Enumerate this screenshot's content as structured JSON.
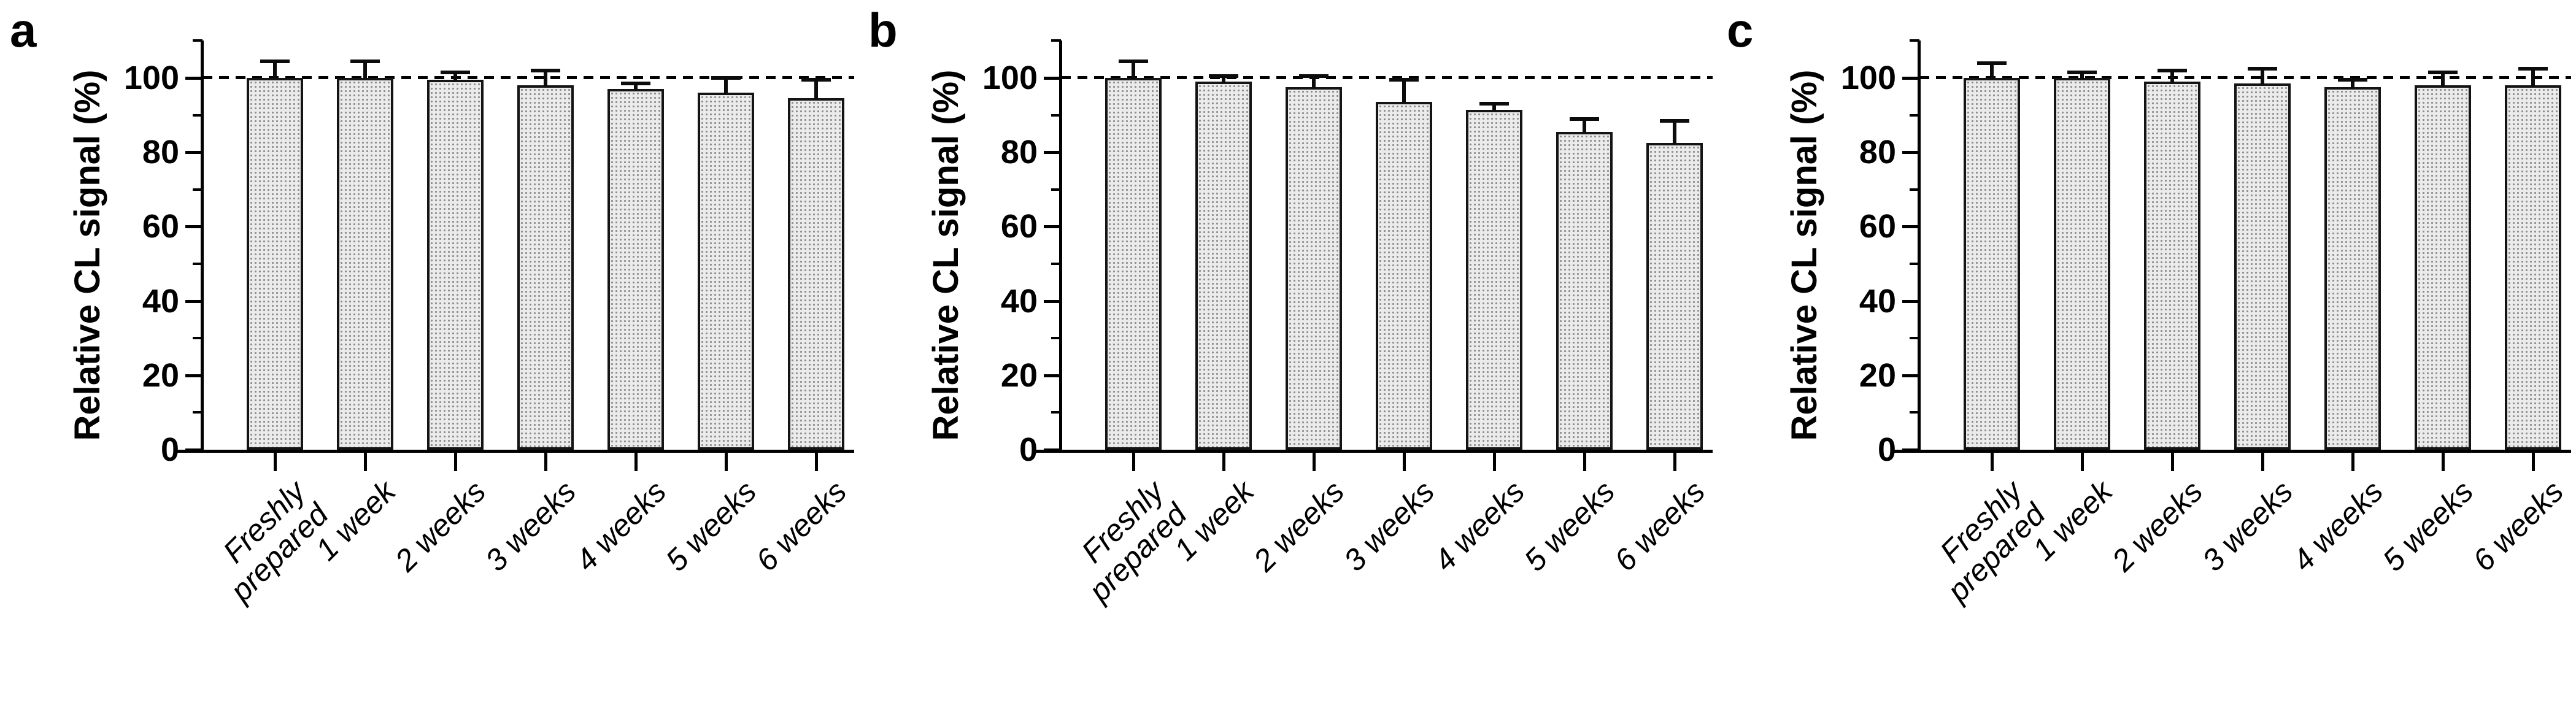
{
  "figure_title": "",
  "axis": {
    "ylabel": "Relative CL signal (%)",
    "yticks": [
      0,
      20,
      40,
      60,
      80,
      100
    ],
    "yminor_ticks": [
      10,
      30,
      50,
      70,
      90,
      110
    ],
    "ylim": [
      0,
      110
    ],
    "reference_line": 100,
    "categories": [
      "Freshly prepared",
      "1 week",
      "2 weeks",
      "3 weeks",
      "4 weeks",
      "5 weeks",
      "6 weeks"
    ],
    "category_display_lines": [
      [
        "Freshly",
        "prepared"
      ],
      [
        "1 week"
      ],
      [
        "2 weeks"
      ],
      [
        "3 weeks"
      ],
      [
        "4 weeks"
      ],
      [
        "5 weeks"
      ],
      [
        "6 weeks"
      ]
    ]
  },
  "colors": {
    "ink": "#000000",
    "bar_fill": "#ebebeb",
    "bar_stipple": "#8d8d8d",
    "bar_border": "#141414"
  },
  "chart_data": [
    {
      "type": "bar",
      "panel_letter": "a",
      "title": "",
      "xlabel": "",
      "ylabel": "Relative CL signal (%)",
      "ylim": [
        0,
        110
      ],
      "grid": false,
      "legend": "none",
      "reference_line": 100,
      "categories": [
        "Freshly prepared",
        "1 week",
        "2 weeks",
        "3 weeks",
        "4 weeks",
        "5 weeks",
        "6 weeks"
      ],
      "values": [
        100,
        100,
        99.5,
        98,
        97,
        96,
        94.5
      ],
      "errors_plus": [
        5,
        5,
        2.5,
        4.5,
        2,
        4.5,
        5.5
      ]
    },
    {
      "type": "bar",
      "panel_letter": "b",
      "title": "",
      "xlabel": "",
      "ylabel": "Relative CL signal (%)",
      "ylim": [
        0,
        110
      ],
      "grid": false,
      "legend": "none",
      "reference_line": 100,
      "categories": [
        "Freshly prepared",
        "1 week",
        "2 weeks",
        "3 weeks",
        "4 weeks",
        "5 weeks",
        "6 weeks"
      ],
      "values": [
        100,
        99,
        97.5,
        93.5,
        91.5,
        85.5,
        82.5
      ],
      "errors_plus": [
        5,
        2,
        3.5,
        6.5,
        2,
        4,
        6.5
      ]
    },
    {
      "type": "bar",
      "panel_letter": "c",
      "title": "",
      "xlabel": "",
      "ylabel": "Relative CL signal (%)",
      "ylim": [
        0,
        110
      ],
      "grid": false,
      "legend": "none",
      "reference_line": 100,
      "categories": [
        "Freshly prepared",
        "1 week",
        "2 weeks",
        "3 weeks",
        "4 weeks",
        "5 weeks",
        "6 weeks"
      ],
      "values": [
        100,
        100,
        99,
        98.5,
        97.5,
        98,
        98
      ],
      "errors_plus": [
        4.5,
        2,
        3.5,
        4.5,
        2.5,
        4,
        5
      ]
    }
  ]
}
